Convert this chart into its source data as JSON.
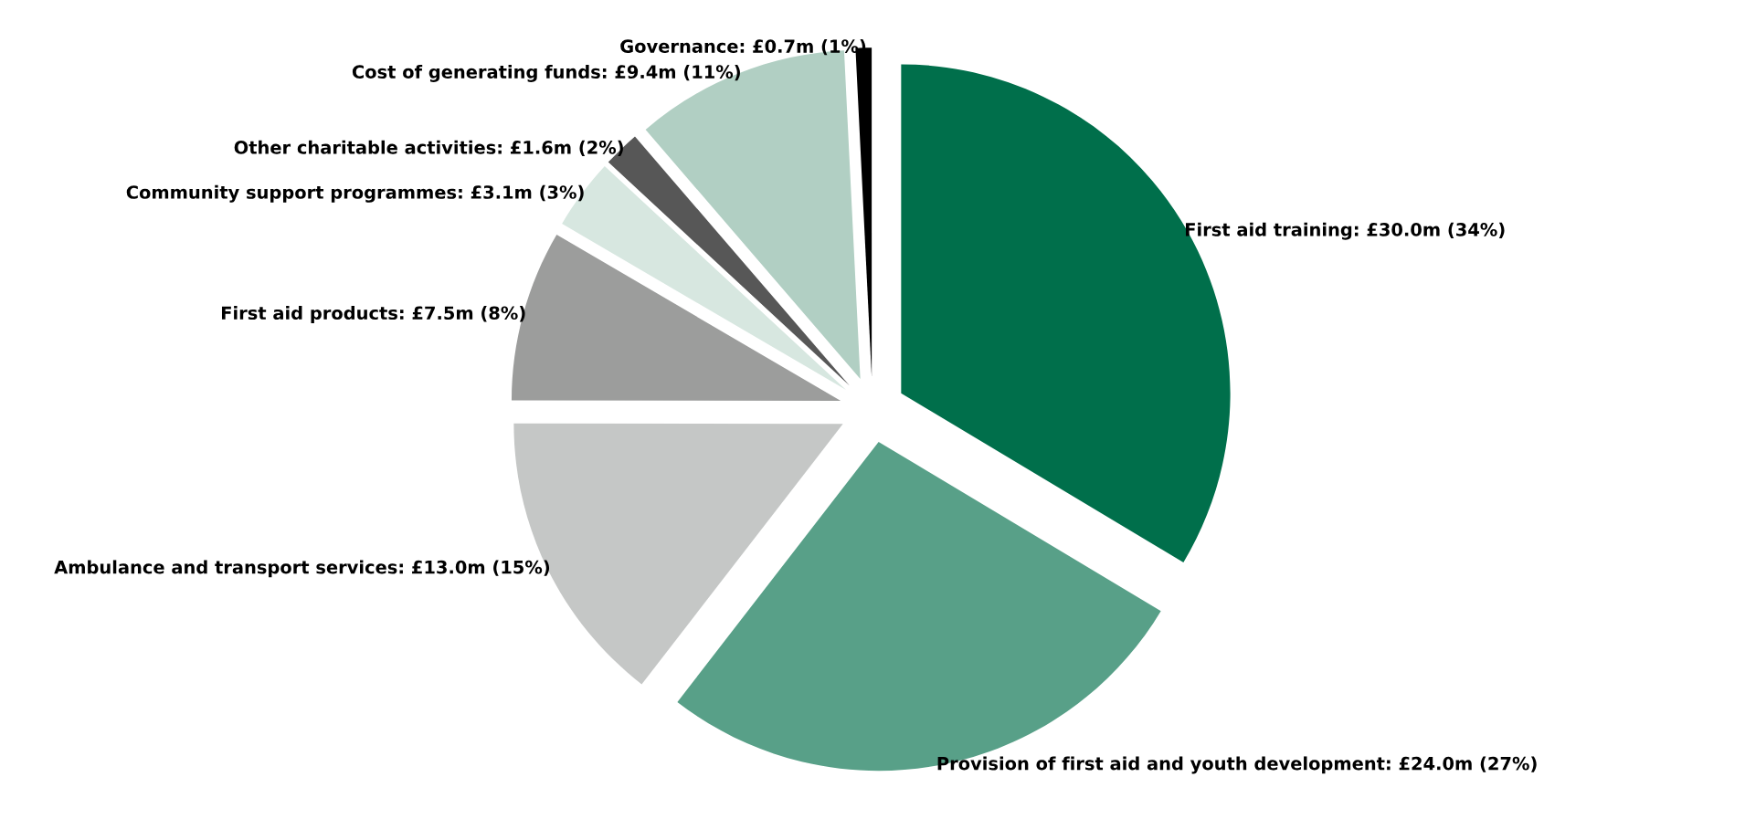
{
  "chart_data": {
    "type": "pie",
    "categories": [
      "First aid training: £30.0m (34%)",
      "Provision of first aid and youth development: £24.0m (27%)",
      "Ambulance and transport services: £13.0m (15%)",
      "First aid products: £7.5m (8%)",
      "Community support programmes: £3.1m (3%)",
      "Other charitable activities: £1.6m (2%)",
      "Cost of generating funds: £9.4m (11%)",
      "Governance: £0.7m (1%)"
    ],
    "values": [
      30.0,
      24.0,
      13.0,
      7.5,
      3.1,
      1.6,
      9.4,
      0.7
    ],
    "colors": [
      "#006f4b",
      "#58a088",
      "#c5c7c6",
      "#9c9d9c",
      "#d7e7e0",
      "#575757",
      "#b1cfc3",
      "#000000"
    ],
    "legend": false
  }
}
